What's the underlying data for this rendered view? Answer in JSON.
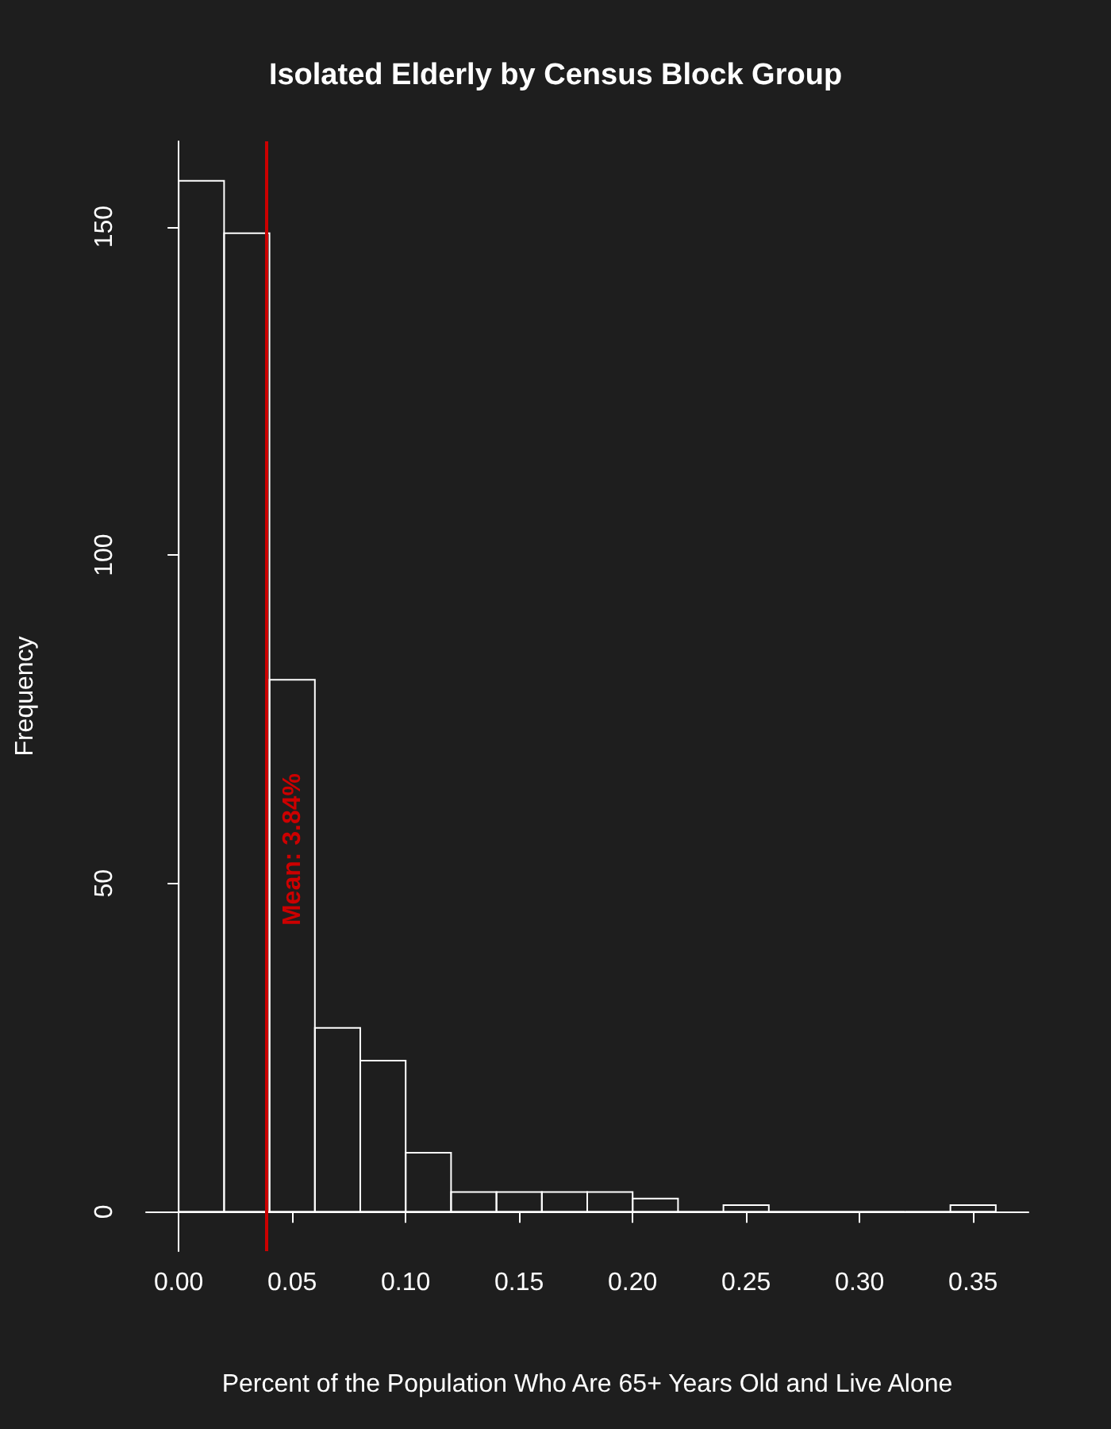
{
  "chart_data": {
    "type": "histogram",
    "title": "Isolated Elderly by Census Block Group",
    "xlabel": "Percent of the Population Who Are 65+ Years Old and Live Alone",
    "ylabel": "Frequency",
    "bins": [
      0,
      0.02,
      0.04,
      0.06,
      0.08,
      0.1,
      0.12,
      0.14,
      0.16,
      0.18,
      0.2,
      0.22,
      0.24,
      0.26,
      0.28,
      0.3,
      0.32,
      0.34,
      0.36
    ],
    "values": [
      157,
      149,
      81,
      28,
      23,
      9,
      3,
      3,
      3,
      3,
      2,
      0,
      1,
      0,
      0,
      0,
      0,
      1
    ],
    "color": "#ffffff",
    "xlim": [
      -0.0144,
      0.3744
    ],
    "xticks": [
      {
        "value": 0,
        "label": "0.00"
      },
      {
        "value": 0.05,
        "label": "0.05"
      },
      {
        "value": 0.1,
        "label": "0.10"
      },
      {
        "value": 0.15,
        "label": "0.15"
      },
      {
        "value": 0.2,
        "label": "0.20"
      },
      {
        "value": 0.25,
        "label": "0.25"
      },
      {
        "value": 0.3,
        "label": "0.30"
      },
      {
        "value": 0.35,
        "label": "0.35"
      }
    ],
    "ylim": [
      -6,
      163
    ],
    "yticks": [
      0,
      50,
      100,
      150
    ],
    "grid": false,
    "ref_lines": [
      {
        "axis": "x",
        "value": 0.0384,
        "label": "Mean: 3.84%",
        "color": "#cc0000"
      }
    ]
  }
}
